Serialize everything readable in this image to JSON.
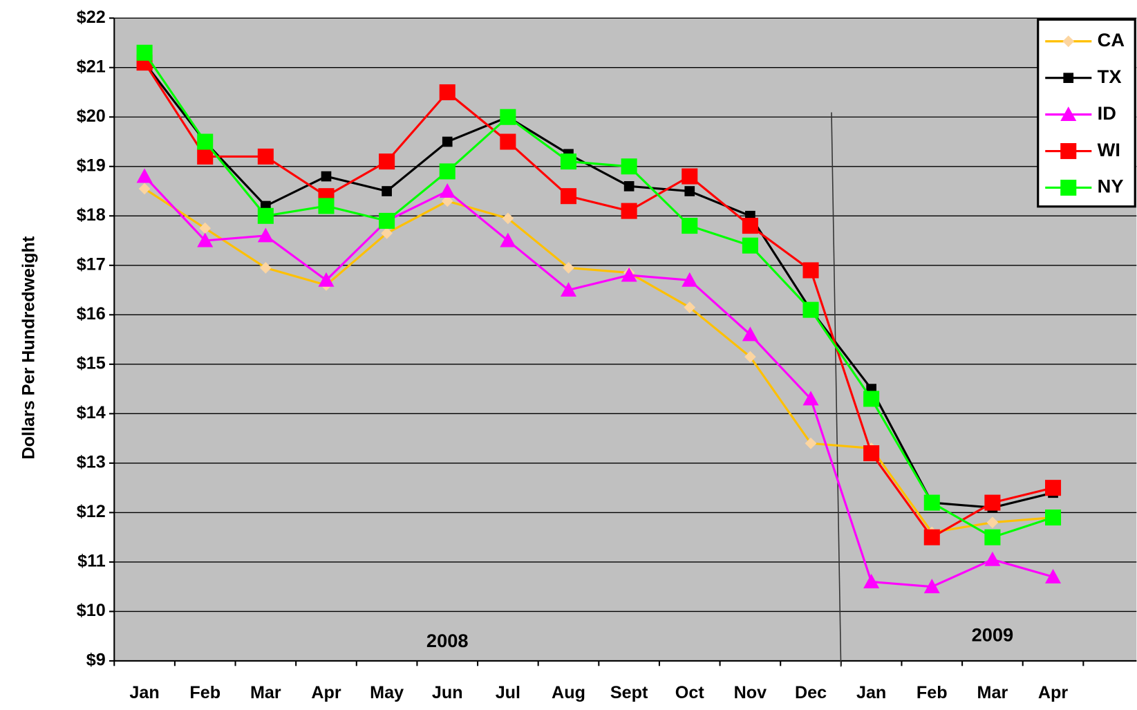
{
  "chart_data": {
    "type": "line",
    "y_label": "Dollars Per Hundredweight",
    "categories": [
      "Jan",
      "Feb",
      "Mar",
      "Apr",
      "May",
      "Jun",
      "Jul",
      "Aug",
      "Sept",
      "Oct",
      "Nov",
      "Dec",
      "Jan",
      "Feb",
      "Mar",
      "Apr"
    ],
    "annotations": [
      {
        "text": "2008",
        "index": 5
      },
      {
        "text": "2009",
        "index": 14
      }
    ],
    "ylim": [
      9,
      22
    ],
    "yticks": [
      {
        "value": 9,
        "label": "$9"
      },
      {
        "value": 10,
        "label": "$10"
      },
      {
        "value": 11,
        "label": "$11"
      },
      {
        "value": 12,
        "label": "$12"
      },
      {
        "value": 13,
        "label": "$13"
      },
      {
        "value": 14,
        "label": "$14"
      },
      {
        "value": 15,
        "label": "$15"
      },
      {
        "value": 16,
        "label": "$16"
      },
      {
        "value": 17,
        "label": "$17"
      },
      {
        "value": 18,
        "label": "$18"
      },
      {
        "value": 19,
        "label": "$19"
      },
      {
        "value": 20,
        "label": "$20"
      },
      {
        "value": 21,
        "label": "$21"
      },
      {
        "value": 22,
        "label": "$22"
      }
    ],
    "grid": true,
    "background": "#c0c0c0",
    "legend": "upper right",
    "series": [
      {
        "name": "CA",
        "color": "#ffc000",
        "marker": "diamond",
        "marker_color": "#fcd5a0",
        "values": [
          18.55,
          17.75,
          16.95,
          16.6,
          17.65,
          18.3,
          17.95,
          16.95,
          16.85,
          16.15,
          15.15,
          13.4,
          13.3,
          11.6,
          11.8,
          11.9
        ]
      },
      {
        "name": "TX",
        "color": "#000000",
        "marker": "small-square",
        "marker_color": "#000000",
        "values": [
          21.1,
          19.5,
          18.2,
          18.8,
          18.5,
          19.5,
          20.0,
          19.25,
          18.6,
          18.5,
          18.0,
          16.1,
          14.5,
          12.2,
          12.1,
          12.4
        ]
      },
      {
        "name": "ID",
        "color": "#ff00ff",
        "marker": "triangle",
        "marker_color": "#ff00ff",
        "values": [
          18.8,
          17.5,
          17.6,
          16.7,
          17.9,
          18.5,
          17.5,
          16.5,
          16.8,
          16.7,
          15.6,
          14.3,
          10.6,
          10.5,
          11.05,
          10.7
        ]
      },
      {
        "name": "WI",
        "color": "#ff0000",
        "marker": "square",
        "marker_color": "#ff0000",
        "values": [
          21.1,
          19.2,
          19.2,
          18.4,
          19.1,
          20.5,
          19.5,
          18.4,
          18.1,
          18.8,
          17.8,
          16.9,
          13.2,
          11.5,
          12.2,
          12.5
        ]
      },
      {
        "name": "NY",
        "color": "#00ff00",
        "marker": "square",
        "marker_color": "#00ff00",
        "values": [
          21.3,
          19.5,
          18.0,
          18.2,
          17.9,
          18.9,
          20.0,
          19.1,
          19.0,
          17.8,
          17.4,
          16.1,
          14.3,
          12.2,
          11.5,
          11.9
        ]
      }
    ]
  }
}
